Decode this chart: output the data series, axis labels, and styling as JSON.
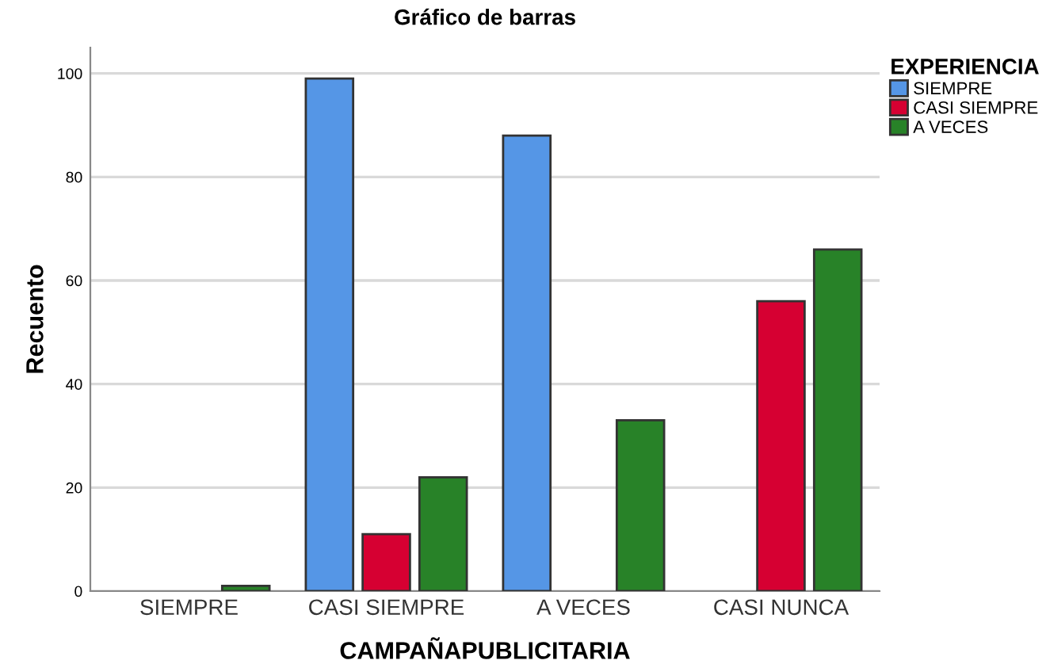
{
  "chart_data": {
    "type": "bar",
    "title": "Gráfico de barras",
    "xlabel": "CAMPAÑAPUBLICITARIA",
    "ylabel": "Recuento",
    "legend_title": "EXPERIENCIA",
    "categories": [
      "SIEMPRE",
      "CASI SIEMPRE",
      "A VECES",
      "CASI NUNCA"
    ],
    "series": [
      {
        "name": "SIEMPRE",
        "color": "#5596e6",
        "values": [
          null,
          99,
          88,
          null
        ]
      },
      {
        "name": "CASI SIEMPRE",
        "color": "#d60032",
        "values": [
          null,
          11,
          null,
          56
        ]
      },
      {
        "name": "A VECES",
        "color": "#288228",
        "values": [
          1,
          22,
          33,
          66
        ]
      }
    ],
    "ylim": [
      0,
      105
    ],
    "yticks": [
      0,
      20,
      40,
      60,
      80,
      100
    ],
    "grid": "y",
    "legend": "top right"
  }
}
